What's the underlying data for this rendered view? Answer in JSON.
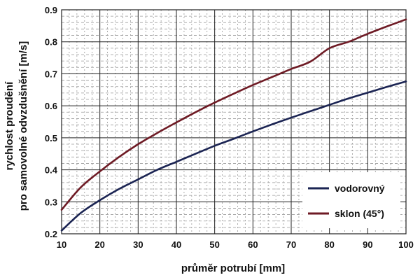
{
  "chart_data": {
    "type": "line",
    "title": "",
    "xlabel": "průměr potrubí [mm]",
    "ylabel_line1": "rychlost proudění",
    "ylabel_line2": "pro samovolné odvzdušnění [m/s]",
    "xlim": [
      10,
      100
    ],
    "ylim": [
      0.2,
      0.9
    ],
    "x_ticks": [
      10,
      20,
      30,
      40,
      50,
      60,
      70,
      80,
      90,
      100
    ],
    "y_ticks": [
      "0.2",
      "0.3",
      "0.4",
      "0.5",
      "0.6",
      "0.7",
      "0.8",
      "0.9"
    ],
    "grid": true,
    "legend_position": "bottom-right",
    "x": [
      10,
      15,
      20,
      25,
      30,
      35,
      40,
      45,
      50,
      55,
      60,
      65,
      70,
      75,
      80,
      85,
      90,
      95,
      100
    ],
    "series": [
      {
        "name": "vodorovný",
        "color": "#1b2453",
        "values": [
          0.21,
          0.265,
          0.305,
          0.34,
          0.37,
          0.4,
          0.425,
          0.45,
          0.475,
          0.497,
          0.52,
          0.542,
          0.563,
          0.583,
          0.603,
          0.623,
          0.641,
          0.659,
          0.676
        ]
      },
      {
        "name": "sklon (45°)",
        "color": "#6e1a24",
        "values": [
          0.275,
          0.345,
          0.395,
          0.44,
          0.48,
          0.515,
          0.548,
          0.58,
          0.61,
          0.638,
          0.665,
          0.69,
          0.715,
          0.738,
          0.78,
          0.8,
          0.825,
          0.848,
          0.87
        ]
      }
    ]
  }
}
